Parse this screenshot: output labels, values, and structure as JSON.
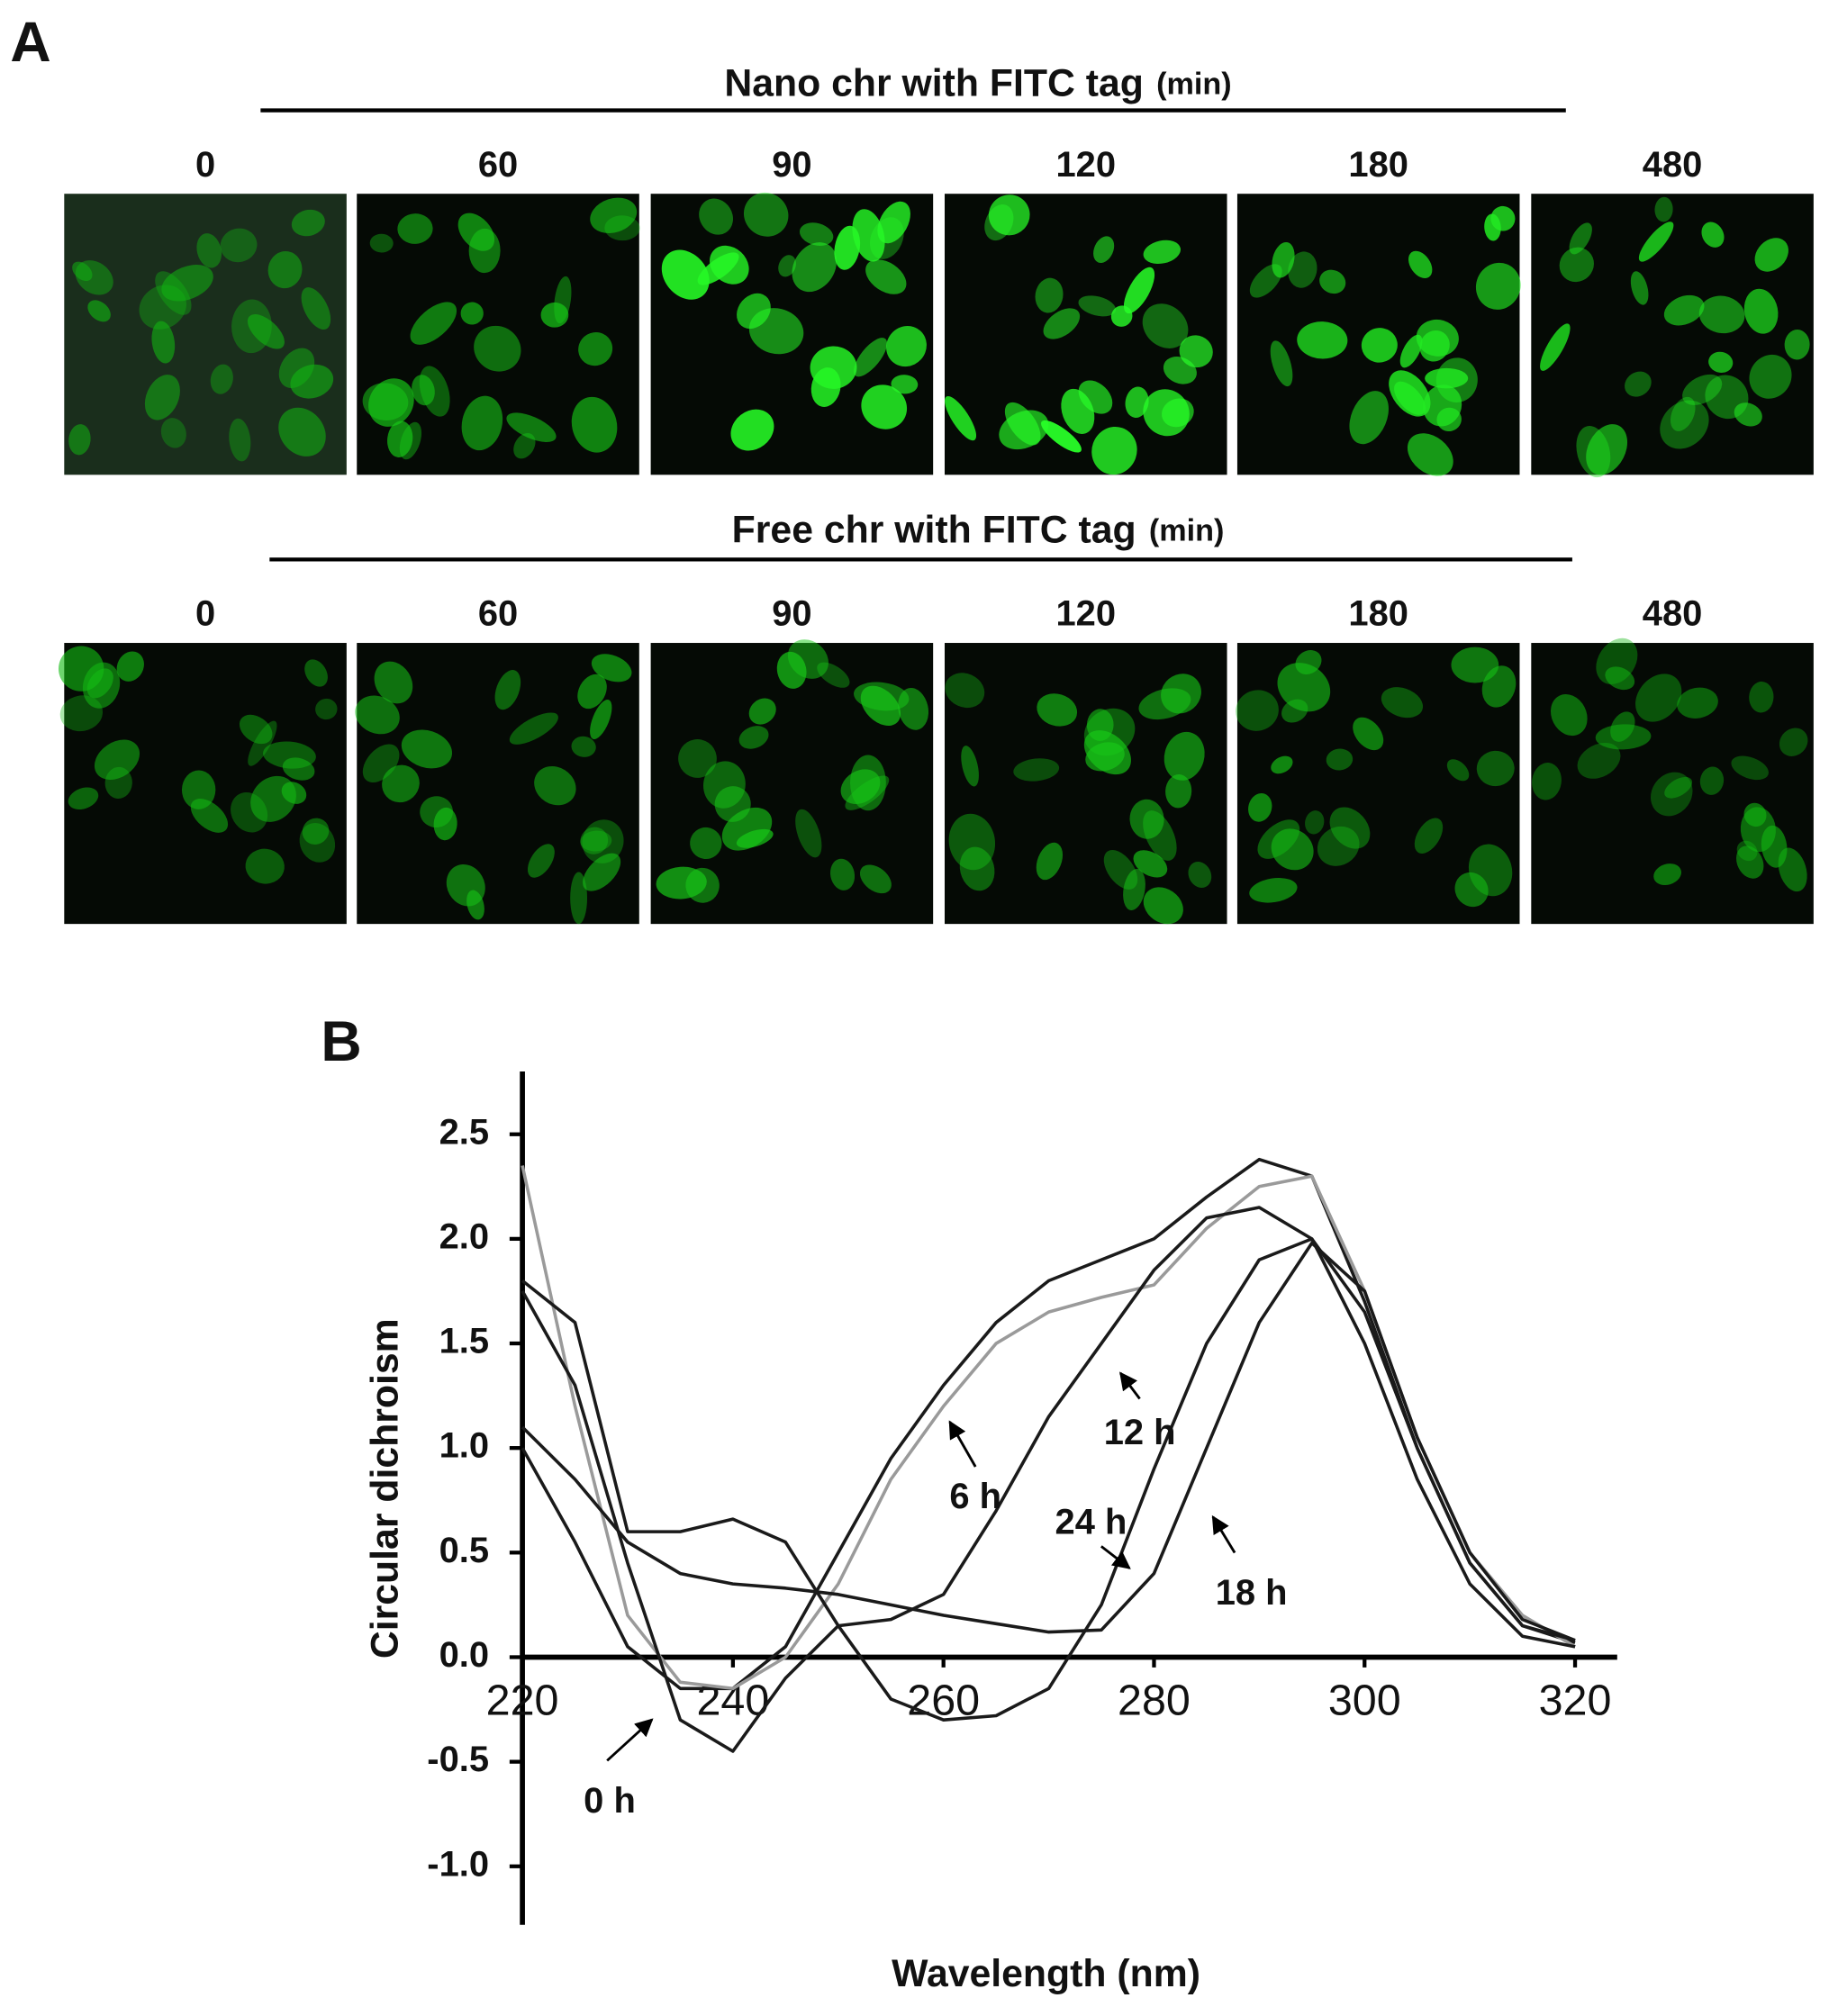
{
  "panel_a": {
    "label": "A",
    "rows": [
      {
        "title": "Nano chr with FITC tag",
        "unit": "(min)",
        "times": [
          0,
          60,
          90,
          120,
          180,
          480
        ]
      },
      {
        "title": "Free chr with FITC tag",
        "unit": "(min)",
        "times": [
          0,
          60,
          90,
          120,
          180,
          480
        ]
      }
    ]
  },
  "chart_data": {
    "type": "line",
    "panel_label": "B",
    "x_label": "Wavelength (nm)",
    "y_label": "Circular dichroism",
    "x": [
      220,
      225,
      230,
      235,
      240,
      245,
      250,
      255,
      260,
      265,
      270,
      275,
      280,
      285,
      290,
      295,
      300,
      305,
      310,
      315,
      320
    ],
    "series": [
      {
        "name": "0 h",
        "color": "#1a1a1a",
        "values": [
          1.0,
          0.55,
          0.05,
          -0.15,
          -0.15,
          0.05,
          0.5,
          0.95,
          1.3,
          1.6,
          1.8,
          1.9,
          2.0,
          2.2,
          2.38,
          2.3,
          1.7,
          1.0,
          0.45,
          0.15,
          0.07
        ]
      },
      {
        "name": "6 h",
        "color": "#9a9a9a",
        "values": [
          2.35,
          1.2,
          0.2,
          -0.12,
          -0.15,
          0.0,
          0.35,
          0.85,
          1.2,
          1.5,
          1.65,
          1.72,
          1.78,
          2.05,
          2.25,
          2.3,
          1.75,
          1.05,
          0.5,
          0.2,
          0.05
        ]
      },
      {
        "name": "12 h",
        "color": "#1a1a1a",
        "values": [
          1.75,
          1.3,
          0.45,
          -0.3,
          -0.45,
          -0.1,
          0.15,
          0.18,
          0.3,
          0.7,
          1.15,
          1.5,
          1.85,
          2.1,
          2.15,
          2.0,
          1.5,
          0.85,
          0.35,
          0.1,
          0.05
        ]
      },
      {
        "name": "18 h",
        "color": "#1a1a1a",
        "values": [
          1.8,
          1.6,
          0.6,
          0.6,
          0.66,
          0.55,
          0.15,
          -0.2,
          -0.3,
          -0.28,
          -0.15,
          0.25,
          0.9,
          1.5,
          1.9,
          2.0,
          1.65,
          1.0,
          0.45,
          0.15,
          0.08
        ]
      },
      {
        "name": "24 h",
        "color": "#1a1a1a",
        "values": [
          1.1,
          0.85,
          0.55,
          0.4,
          0.35,
          0.33,
          0.3,
          0.25,
          0.2,
          0.16,
          0.12,
          0.13,
          0.4,
          1.0,
          1.6,
          1.98,
          1.75,
          1.05,
          0.5,
          0.18,
          0.08
        ]
      }
    ],
    "xlim": [
      220,
      324
    ],
    "ylim": [
      -1.28,
      2.8
    ],
    "xticks": [
      220,
      240,
      260,
      280,
      300,
      320
    ],
    "yticks": [
      {
        "value": -1,
        "label": "-1.0"
      },
      -0.5,
      {
        "value": 0,
        "label": "0.0"
      },
      0.5,
      {
        "value": 1,
        "label": "1.0"
      },
      1.5,
      {
        "value": 2,
        "label": "2.0"
      },
      2.5
    ]
  }
}
